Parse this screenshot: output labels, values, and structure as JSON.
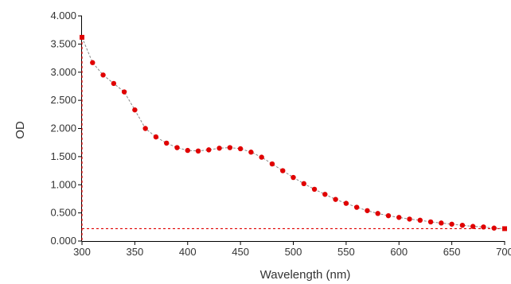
{
  "chart_data": {
    "type": "scatter",
    "xlabel": "Wavelength (nm)",
    "ylabel": "OD",
    "xlim": [
      300,
      700
    ],
    "ylim": [
      0,
      4
    ],
    "x_ticks": [
      300,
      350,
      400,
      450,
      500,
      550,
      600,
      650,
      700
    ],
    "y_ticks": [
      0,
      0.5,
      1,
      1.5,
      2,
      2.5,
      3,
      3.5,
      4
    ],
    "x_tick_labels": [
      "300",
      "350",
      "400",
      "450",
      "500",
      "550",
      "600",
      "650",
      "700"
    ],
    "y_tick_labels": [
      "0.000",
      "0.500",
      "1.000",
      "1.500",
      "2.000",
      "2.500",
      "3.000",
      "3.500",
      "4.000"
    ],
    "grid": false,
    "legend": "none",
    "series": [
      {
        "color": "#e00000",
        "line_color": "#888888",
        "x": [
          300,
          310,
          320,
          330,
          340,
          350,
          360,
          370,
          380,
          390,
          400,
          410,
          420,
          430,
          440,
          450,
          460,
          470,
          480,
          490,
          500,
          510,
          520,
          530,
          540,
          550,
          560,
          570,
          580,
          590,
          600,
          610,
          620,
          630,
          640,
          650,
          660,
          670,
          680,
          690,
          700
        ],
        "y": [
          3.62,
          3.17,
          2.95,
          2.8,
          2.65,
          2.33,
          2.0,
          1.85,
          1.74,
          1.66,
          1.61,
          1.6,
          1.62,
          1.65,
          1.66,
          1.64,
          1.58,
          1.49,
          1.37,
          1.25,
          1.13,
          1.02,
          0.92,
          0.83,
          0.74,
          0.67,
          0.6,
          0.54,
          0.49,
          0.45,
          0.42,
          0.39,
          0.37,
          0.34,
          0.32,
          0.3,
          0.28,
          0.26,
          0.25,
          0.23,
          0.22
        ]
      }
    ],
    "reference_lines": {
      "color": "#e00000",
      "vertical_x": 300,
      "horizontal_y": 0.22
    }
  }
}
